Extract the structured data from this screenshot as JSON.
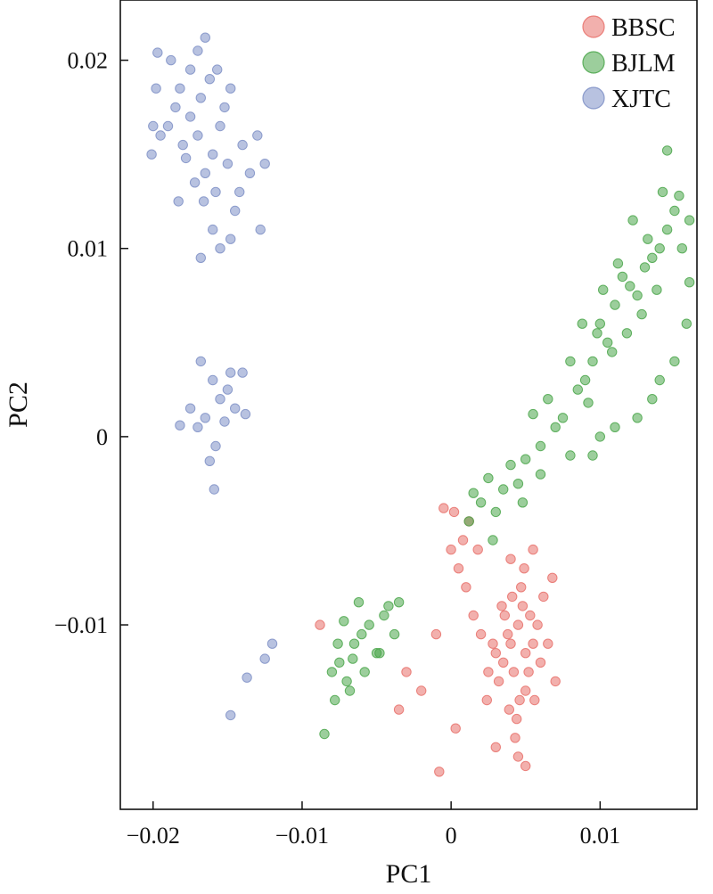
{
  "chart_data": {
    "type": "scatter",
    "xlabel": "PC1",
    "ylabel": "PC2",
    "xlim": [
      -0.0222,
      0.0165
    ],
    "ylim": [
      -0.0198,
      0.0232
    ],
    "x_ticks": [
      -0.02,
      -0.01,
      0,
      0.01
    ],
    "x_tick_labels": [
      "−0.02",
      "−0.01",
      "0",
      "0.01"
    ],
    "y_ticks": [
      -0.01,
      0,
      0.01,
      0.02
    ],
    "y_tick_labels": [
      "−0.01",
      "0",
      "0.01",
      "0.02"
    ],
    "grid": false,
    "legend_position": "top-right",
    "series": [
      {
        "name": "BBSC",
        "color": "#e8706a",
        "points": [
          [
            0.0035,
            -0.012
          ],
          [
            0.004,
            -0.011
          ],
          [
            0.0045,
            -0.01
          ],
          [
            0.005,
            -0.0115
          ],
          [
            0.0042,
            -0.0125
          ],
          [
            0.0038,
            -0.0105
          ],
          [
            0.0048,
            -0.009
          ],
          [
            0.0055,
            -0.011
          ],
          [
            0.0032,
            -0.013
          ],
          [
            0.0046,
            -0.014
          ],
          [
            0.0052,
            -0.0125
          ],
          [
            0.0041,
            -0.0085
          ],
          [
            0.0036,
            -0.0095
          ],
          [
            0.0058,
            -0.01
          ],
          [
            0.003,
            -0.0115
          ],
          [
            0.0044,
            -0.015
          ],
          [
            0.005,
            -0.0135
          ],
          [
            0.0039,
            -0.0145
          ],
          [
            0.0047,
            -0.008
          ],
          [
            0.0053,
            -0.0095
          ],
          [
            0.006,
            -0.012
          ],
          [
            0.0028,
            -0.011
          ],
          [
            0.0043,
            -0.016
          ],
          [
            0.0056,
            -0.014
          ],
          [
            0.0034,
            -0.009
          ],
          [
            0.0049,
            -0.007
          ],
          [
            0.0062,
            -0.0085
          ],
          [
            0.0025,
            -0.0125
          ],
          [
            0.0045,
            -0.017
          ],
          [
            0.0065,
            -0.011
          ],
          [
            0.002,
            -0.0105
          ],
          [
            0.0068,
            -0.0075
          ],
          [
            0.004,
            -0.0065
          ],
          [
            0.0015,
            -0.0095
          ],
          [
            0.007,
            -0.013
          ],
          [
            0.001,
            -0.008
          ],
          [
            0.0005,
            -0.007
          ],
          [
            0.0,
            -0.006
          ],
          [
            -0.0005,
            -0.0038
          ],
          [
            0.0002,
            -0.004
          ],
          [
            0.0012,
            -0.0045
          ],
          [
            0.0008,
            -0.0055
          ],
          [
            0.0018,
            -0.006
          ],
          [
            -0.001,
            -0.0105
          ],
          [
            -0.003,
            -0.0125
          ],
          [
            -0.0035,
            -0.0145
          ],
          [
            -0.002,
            -0.0135
          ],
          [
            -0.0088,
            -0.01
          ],
          [
            -0.0008,
            -0.0178
          ],
          [
            0.0003,
            -0.0155
          ],
          [
            0.0055,
            -0.006
          ],
          [
            0.003,
            -0.0165
          ],
          [
            0.005,
            -0.0175
          ],
          [
            0.0024,
            -0.014
          ]
        ]
      },
      {
        "name": "BJLM",
        "color": "#4aa64a",
        "points": [
          [
            0.012,
            0.008
          ],
          [
            0.011,
            0.007
          ],
          [
            0.013,
            0.009
          ],
          [
            0.01,
            0.006
          ],
          [
            0.0125,
            0.0075
          ],
          [
            0.0115,
            0.0085
          ],
          [
            0.0135,
            0.0095
          ],
          [
            0.0105,
            0.005
          ],
          [
            0.0095,
            0.004
          ],
          [
            0.014,
            0.01
          ],
          [
            0.009,
            0.003
          ],
          [
            0.0145,
            0.011
          ],
          [
            0.0128,
            0.0065
          ],
          [
            0.0118,
            0.0055
          ],
          [
            0.0108,
            0.0045
          ],
          [
            0.0098,
            0.0055
          ],
          [
            0.0132,
            0.0105
          ],
          [
            0.0112,
            0.0092
          ],
          [
            0.0085,
            0.0025
          ],
          [
            0.015,
            0.012
          ],
          [
            0.0122,
            0.0115
          ],
          [
            0.0102,
            0.0078
          ],
          [
            0.008,
            0.004
          ],
          [
            0.0138,
            0.0078
          ],
          [
            0.0155,
            0.01
          ],
          [
            0.0092,
            0.0018
          ],
          [
            0.0075,
            0.001
          ],
          [
            0.0142,
            0.013
          ],
          [
            0.0153,
            0.0128
          ],
          [
            0.016,
            0.0115
          ],
          [
            0.007,
            0.0005
          ],
          [
            0.0065,
            0.002
          ],
          [
            0.006,
            -0.0005
          ],
          [
            0.0055,
            0.0012
          ],
          [
            0.005,
            -0.0012
          ],
          [
            0.0045,
            -0.0025
          ],
          [
            0.004,
            -0.0015
          ],
          [
            0.0035,
            -0.0028
          ],
          [
            0.003,
            -0.004
          ],
          [
            0.0025,
            -0.0022
          ],
          [
            0.002,
            -0.0035
          ],
          [
            0.0015,
            -0.003
          ],
          [
            0.0012,
            -0.0045
          ],
          [
            0.0048,
            -0.0035
          ],
          [
            0.0028,
            -0.0055
          ],
          [
            0.006,
            -0.002
          ],
          [
            0.008,
            -0.001
          ],
          [
            0.0088,
            0.006
          ],
          [
            0.016,
            0.0082
          ],
          [
            0.0158,
            0.006
          ],
          [
            0.015,
            0.004
          ],
          [
            0.014,
            0.003
          ],
          [
            0.0135,
            0.002
          ],
          [
            0.0125,
            0.001
          ],
          [
            0.011,
            0.0005
          ],
          [
            0.01,
            0.0
          ],
          [
            0.0095,
            -0.001
          ],
          [
            0.0145,
            0.0152
          ],
          [
            -0.0042,
            -0.009
          ],
          [
            -0.0055,
            -0.01
          ],
          [
            -0.0065,
            -0.011
          ],
          [
            -0.0075,
            -0.012
          ],
          [
            -0.007,
            -0.013
          ],
          [
            -0.006,
            -0.0105
          ],
          [
            -0.005,
            -0.0115
          ],
          [
            -0.0045,
            -0.0095
          ],
          [
            -0.0078,
            -0.014
          ],
          [
            -0.008,
            -0.0125
          ],
          [
            -0.0068,
            -0.0135
          ],
          [
            -0.0058,
            -0.0125
          ],
          [
            -0.0048,
            -0.0115
          ],
          [
            -0.0038,
            -0.0105
          ],
          [
            -0.0035,
            -0.0088
          ],
          [
            -0.0062,
            -0.0088
          ],
          [
            -0.0072,
            -0.0098
          ],
          [
            -0.0085,
            -0.0158
          ],
          [
            -0.0076,
            -0.011
          ],
          [
            -0.0066,
            -0.0118
          ]
        ]
      },
      {
        "name": "XJTC",
        "color": "#7e8fc6",
        "points": [
          [
            -0.017,
            0.016
          ],
          [
            -0.016,
            0.015
          ],
          [
            -0.0175,
            0.017
          ],
          [
            -0.0165,
            0.014
          ],
          [
            -0.0155,
            0.0165
          ],
          [
            -0.018,
            0.0155
          ],
          [
            -0.0168,
            0.018
          ],
          [
            -0.0158,
            0.013
          ],
          [
            -0.0185,
            0.0175
          ],
          [
            -0.015,
            0.0145
          ],
          [
            -0.0172,
            0.0135
          ],
          [
            -0.0162,
            0.019
          ],
          [
            -0.0178,
            0.0148
          ],
          [
            -0.0145,
            0.012
          ],
          [
            -0.019,
            0.0165
          ],
          [
            -0.0152,
            0.0175
          ],
          [
            -0.0166,
            0.0125
          ],
          [
            -0.0182,
            0.0185
          ],
          [
            -0.014,
            0.0155
          ],
          [
            -0.0195,
            0.016
          ],
          [
            -0.016,
            0.011
          ],
          [
            -0.0148,
            0.0105
          ],
          [
            -0.0175,
            0.0195
          ],
          [
            -0.0188,
            0.02
          ],
          [
            -0.017,
            0.0205
          ],
          [
            -0.0135,
            0.014
          ],
          [
            -0.013,
            0.016
          ],
          [
            -0.0125,
            0.0145
          ],
          [
            -0.0198,
            0.0185
          ],
          [
            -0.02,
            0.0165
          ],
          [
            -0.0168,
            0.0095
          ],
          [
            -0.0155,
            0.01
          ],
          [
            -0.0142,
            0.013
          ],
          [
            -0.0128,
            0.011
          ],
          [
            -0.0165,
            0.0212
          ],
          [
            -0.0197,
            0.0204
          ],
          [
            -0.0201,
            0.015
          ],
          [
            -0.0157,
            0.0195
          ],
          [
            -0.0183,
            0.0125
          ],
          [
            -0.0148,
            0.0185
          ],
          [
            -0.016,
            0.003
          ],
          [
            -0.0155,
            0.002
          ],
          [
            -0.0165,
            0.001
          ],
          [
            -0.015,
            0.0025
          ],
          [
            -0.0145,
            0.0015
          ],
          [
            -0.017,
            0.0005
          ],
          [
            -0.0158,
            -0.0005
          ],
          [
            -0.0168,
            0.004
          ],
          [
            -0.014,
            0.0034
          ],
          [
            -0.0175,
            0.0015
          ],
          [
            -0.0138,
            0.0012
          ],
          [
            -0.0162,
            -0.0013
          ],
          [
            -0.0182,
            0.0006
          ],
          [
            -0.0152,
            0.0008
          ],
          [
            -0.0148,
            0.0034
          ],
          [
            -0.0159,
            -0.0028
          ],
          [
            -0.012,
            -0.011
          ],
          [
            -0.0125,
            -0.0118
          ],
          [
            -0.0137,
            -0.0128
          ],
          [
            -0.0148,
            -0.0148
          ]
        ]
      }
    ]
  }
}
